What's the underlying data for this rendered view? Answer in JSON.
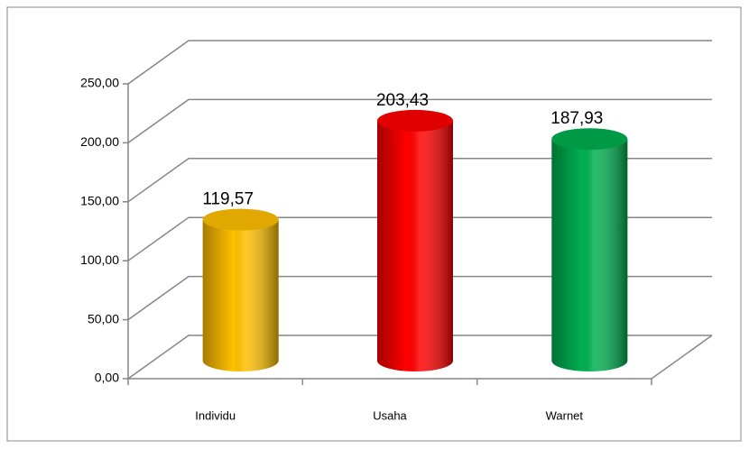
{
  "chart_data": {
    "type": "bar",
    "three_d": true,
    "categories": [
      "Individu",
      "Usaha",
      "Warnet"
    ],
    "values": [
      119.57,
      203.43,
      187.93
    ],
    "value_labels": [
      "119,57",
      "203,43",
      "187,93"
    ],
    "colors": [
      "#ffc000",
      "#ff0000",
      "#00b050"
    ],
    "ylim": [
      0,
      250
    ],
    "yticks": [
      {
        "value": 0,
        "label": "0,00"
      },
      {
        "value": 50,
        "label": "50,00"
      },
      {
        "value": 100,
        "label": "100,00"
      },
      {
        "value": 150,
        "label": "150,00"
      },
      {
        "value": 200,
        "label": "200,00"
      },
      {
        "value": 250,
        "label": "250,00"
      }
    ],
    "grid": true
  }
}
